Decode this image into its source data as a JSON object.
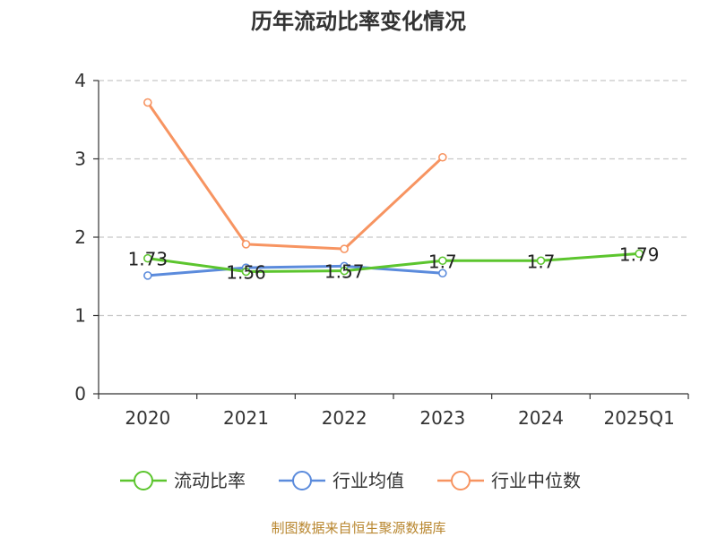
{
  "chart_data": {
    "type": "line",
    "title": "历年流动比率变化情况",
    "categories": [
      "2020",
      "2021",
      "2022",
      "2023",
      "2024",
      "2025Q1"
    ],
    "ylim": [
      0,
      4
    ],
    "yticks": [
      0,
      1,
      2,
      3,
      4
    ],
    "grid": true,
    "legend_position": "bottom",
    "series": [
      {
        "name": "流动比率",
        "color": "#5cc52e",
        "values": [
          1.73,
          1.56,
          1.57,
          1.7,
          1.7,
          1.79
        ],
        "labels": [
          "1.73",
          "1.56",
          "1.57",
          "1.7",
          "1.7",
          "1.79"
        ]
      },
      {
        "name": "行业均值",
        "color": "#5b8bdc",
        "values": [
          1.51,
          1.61,
          1.63,
          1.54,
          null,
          null
        ]
      },
      {
        "name": "行业中位数",
        "color": "#f79461",
        "values": [
          3.72,
          1.91,
          1.85,
          3.02,
          null,
          null
        ]
      }
    ]
  },
  "footer": {
    "source": "制图数据来自恒生聚源数据库"
  }
}
